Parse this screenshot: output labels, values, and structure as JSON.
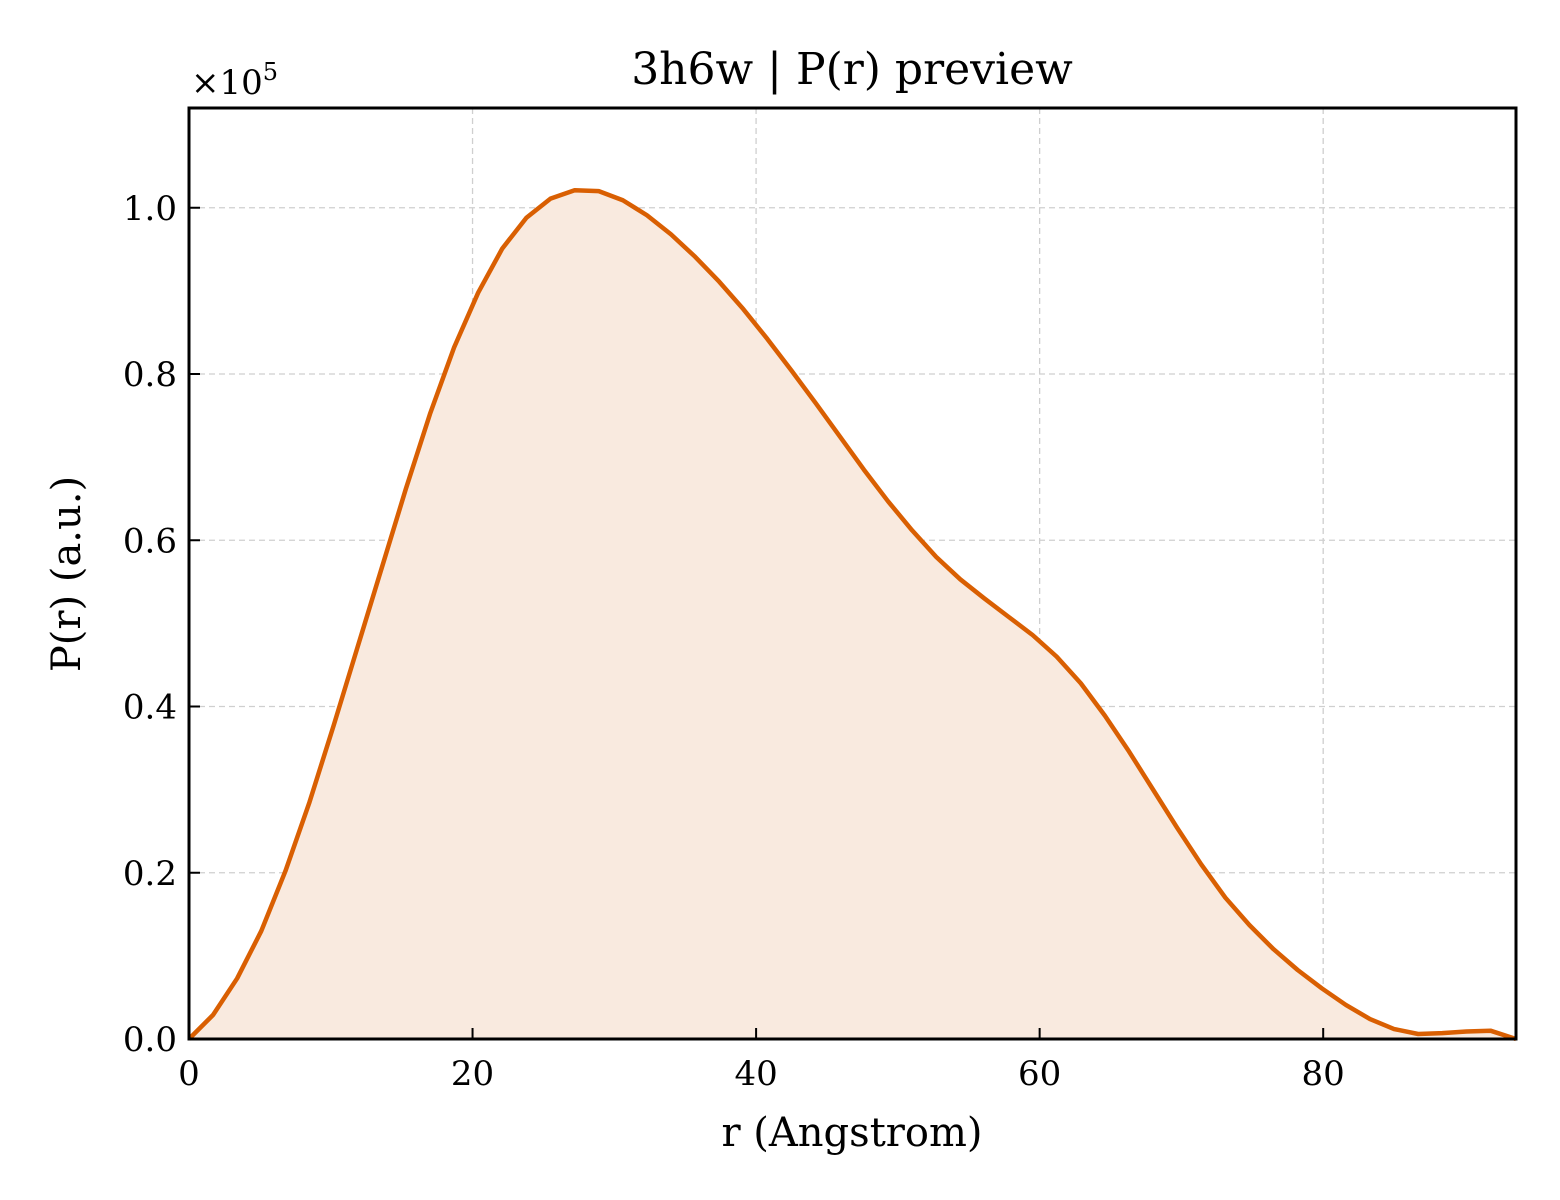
{
  "chart_data": {
    "type": "area",
    "title": "3h6w | P(r) preview",
    "xlabel": "r (Angstrom)",
    "ylabel": "P(r) (a.u.)",
    "y_scale_label": "×10",
    "y_scale_exponent": "5",
    "xlim": [
      0,
      93.6
    ],
    "ylim": [
      0,
      1.12
    ],
    "x_ticks": [
      0,
      20,
      40,
      60,
      80
    ],
    "x_tick_labels": [
      "0",
      "20",
      "40",
      "60",
      "80"
    ],
    "y_ticks": [
      0,
      0.2,
      0.4,
      0.6,
      0.8,
      1.0
    ],
    "y_tick_labels": [
      "0.0",
      "0.2",
      "0.4",
      "0.6",
      "0.8",
      "1.0"
    ],
    "grid": true,
    "line_color": "#d95f02",
    "fill_color": "#f9eadf",
    "series": [
      {
        "x": [
          0,
          1.7,
          3.4,
          5.1,
          6.8,
          8.5,
          10.2,
          11.9,
          13.6,
          15.3,
          17.0,
          18.7,
          20.4,
          22.1,
          23.8,
          25.5,
          27.2,
          28.9,
          30.6,
          32.3,
          34.0,
          35.7,
          37.4,
          39.1,
          40.8,
          42.5,
          44.2,
          45.9,
          47.6,
          49.3,
          51.0,
          52.7,
          54.4,
          56.1,
          57.8,
          59.5,
          61.2,
          62.9,
          64.6,
          66.3,
          68.0,
          69.7,
          71.4,
          73.1,
          74.8,
          76.5,
          78.2,
          79.9,
          81.6,
          83.3,
          85.0,
          86.7,
          88.4,
          90.1,
          91.8,
          93.6
        ],
        "y": [
          0.0,
          0.029,
          0.073,
          0.13,
          0.202,
          0.285,
          0.377,
          0.472,
          0.567,
          0.662,
          0.752,
          0.832,
          0.898,
          0.951,
          0.988,
          1.011,
          1.021,
          1.02,
          1.009,
          0.991,
          0.968,
          0.941,
          0.911,
          0.878,
          0.842,
          0.804,
          0.765,
          0.725,
          0.685,
          0.647,
          0.612,
          0.58,
          0.553,
          0.53,
          0.508,
          0.486,
          0.46,
          0.428,
          0.389,
          0.346,
          0.3,
          0.254,
          0.21,
          0.17,
          0.137,
          0.108,
          0.083,
          0.061,
          0.041,
          0.024,
          0.012,
          0.006,
          0.007,
          0.009,
          0.01,
          0.0
        ]
      }
    ]
  }
}
